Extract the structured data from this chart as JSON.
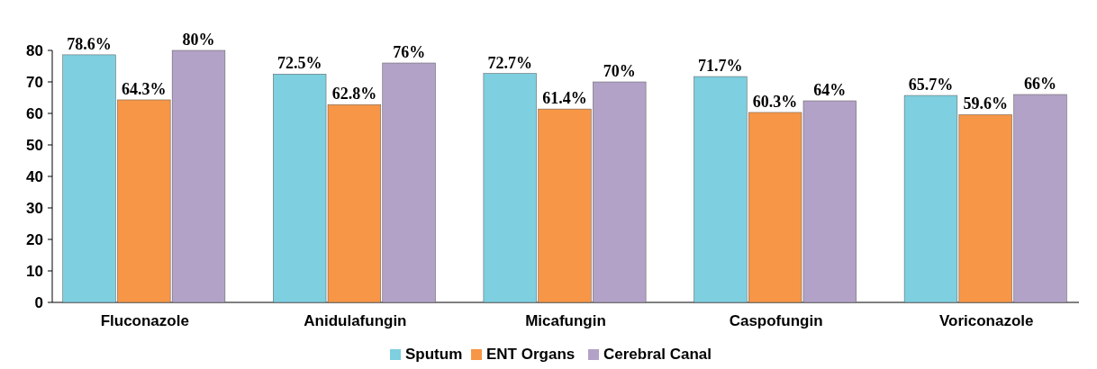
{
  "chart_data": {
    "type": "bar",
    "categories": [
      "Fluconazole",
      "Anidulafungin",
      "Micafungin",
      "Caspofungin",
      "Voriconazole"
    ],
    "series": [
      {
        "name": "Sputum",
        "color": "#7ecfdf",
        "values": [
          78.6,
          72.5,
          72.7,
          71.7,
          65.7
        ],
        "value_labels": [
          "78.6%",
          "72.5%",
          "72.7%",
          "71.7%",
          "65.7%"
        ]
      },
      {
        "name": "ENT Organs",
        "color": "#f79646",
        "values": [
          64.3,
          62.8,
          61.4,
          60.3,
          59.6
        ],
        "value_labels": [
          "64.3%",
          "62.8%",
          "61.4%",
          "60.3%",
          "59.6%"
        ]
      },
      {
        "name": "Cerebral Canal",
        "color": "#b3a2c7",
        "values": [
          80,
          76,
          70,
          64,
          66
        ],
        "value_labels": [
          "80%",
          "76%",
          "70%",
          "64%",
          "66%"
        ]
      }
    ],
    "ylim": [
      0,
      80
    ],
    "yticks": [
      0,
      10,
      20,
      30,
      40,
      50,
      60,
      70,
      80
    ],
    "grid": false,
    "legend": "bottom"
  }
}
